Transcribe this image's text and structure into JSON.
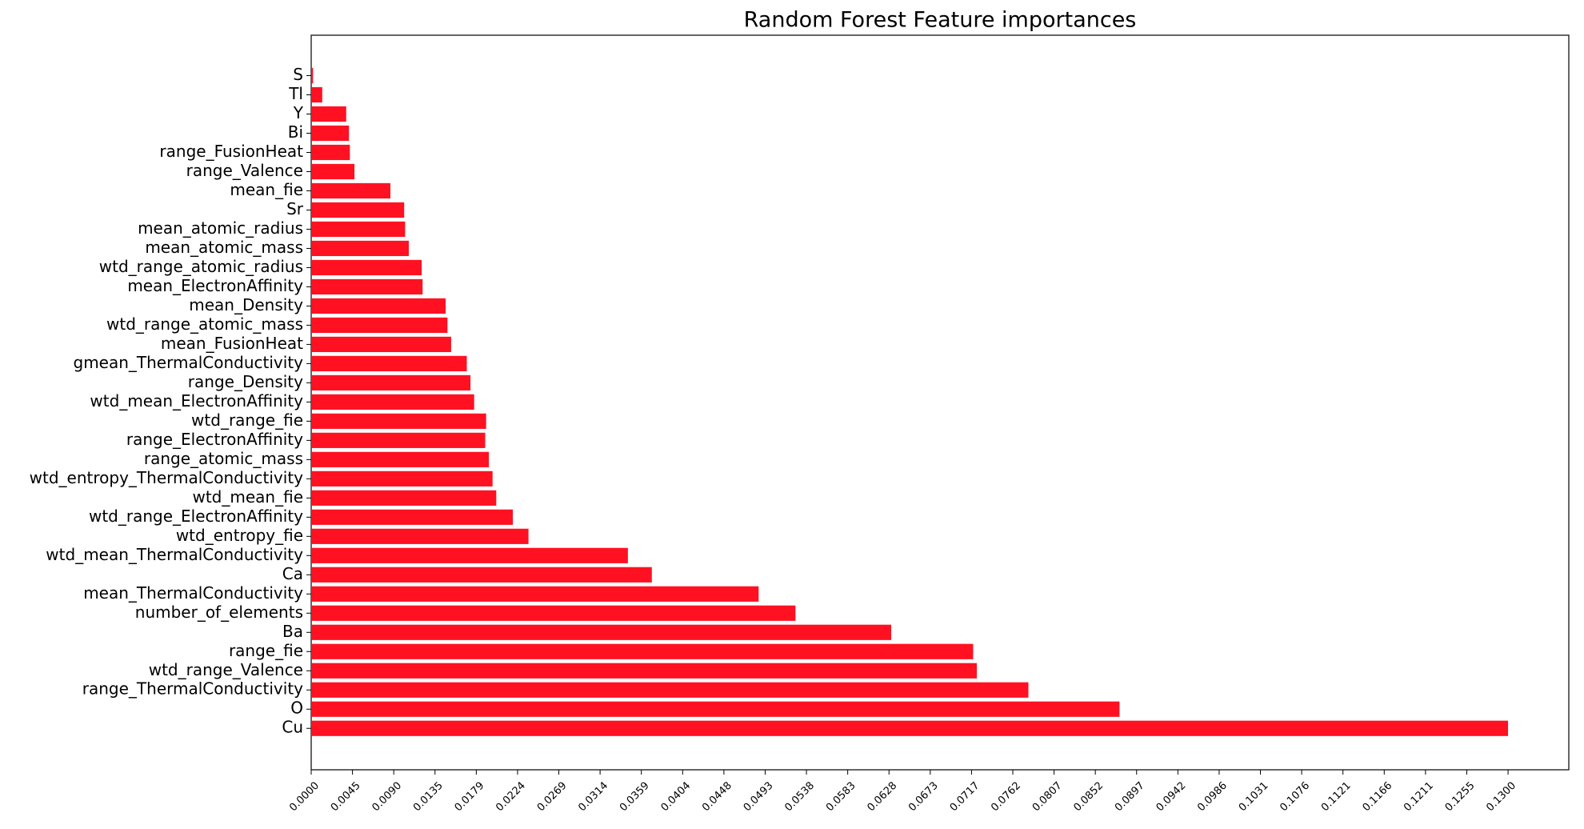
{
  "chart_data": {
    "type": "barh",
    "title": "Random Forest Feature importances",
    "categories": [
      "S",
      "Tl",
      "Y",
      "Bi",
      "range_FusionHeat",
      "range_Valence",
      "mean_fie",
      "Sr",
      "mean_atomic_radius",
      "mean_atomic_mass",
      "wtd_range_atomic_radius",
      "mean_ElectronAffinity",
      "mean_Density",
      "wtd_range_atomic_mass",
      "mean_FusionHeat",
      "gmean_ThermalConductivity",
      "range_Density",
      "wtd_mean_ElectronAffinity",
      "wtd_range_fie",
      "range_ElectronAffinity",
      "range_atomic_mass",
      "wtd_entropy_ThermalConductivity",
      "wtd_mean_fie",
      "wtd_range_ElectronAffinity",
      "wtd_entropy_fie",
      "wtd_mean_ThermalConductivity",
      "Ca",
      "mean_ThermalConductivity",
      "number_of_elements",
      "Ba",
      "range_fie",
      "wtd_range_Valence",
      "range_ThermalConductivity",
      "O",
      "Cu"
    ],
    "values": [
      0.0002,
      0.0012,
      0.0038,
      0.0041,
      0.0042,
      0.0047,
      0.0086,
      0.0101,
      0.0102,
      0.0106,
      0.012,
      0.0121,
      0.0146,
      0.0148,
      0.0152,
      0.0169,
      0.0173,
      0.0177,
      0.019,
      0.0189,
      0.0193,
      0.0197,
      0.0201,
      0.0219,
      0.0236,
      0.0344,
      0.037,
      0.0486,
      0.0526,
      0.063,
      0.0719,
      0.0723,
      0.0779,
      0.0878,
      0.13
    ],
    "color": "#ff1122",
    "xlim": [
      0,
      0.1366
    ],
    "xticks": [
      {
        "value": 0,
        "label": "0.0000"
      },
      {
        "value": 0.0044828,
        "label": "0.0045"
      },
      {
        "value": 0.0089655,
        "label": "0.0090"
      },
      {
        "value": 0.0134483,
        "label": "0.0135"
      },
      {
        "value": 0.017931,
        "label": "0.0179"
      },
      {
        "value": 0.0224138,
        "label": "0.0224"
      },
      {
        "value": 0.0268966,
        "label": "0.0269"
      },
      {
        "value": 0.0313793,
        "label": "0.0314"
      },
      {
        "value": 0.0358621,
        "label": "0.0359"
      },
      {
        "value": 0.0403448,
        "label": "0.0404"
      },
      {
        "value": 0.0448276,
        "label": "0.0448"
      },
      {
        "value": 0.0493103,
        "label": "0.0493"
      },
      {
        "value": 0.0537931,
        "label": "0.0538"
      },
      {
        "value": 0.0582759,
        "label": "0.0583"
      },
      {
        "value": 0.0627586,
        "label": "0.0628"
      },
      {
        "value": 0.0672414,
        "label": "0.0673"
      },
      {
        "value": 0.0717241,
        "label": "0.0717"
      },
      {
        "value": 0.0762069,
        "label": "0.0762"
      },
      {
        "value": 0.0806897,
        "label": "0.0807"
      },
      {
        "value": 0.0851724,
        "label": "0.0852"
      },
      {
        "value": 0.0896552,
        "label": "0.0897"
      },
      {
        "value": 0.0941379,
        "label": "0.0942"
      },
      {
        "value": 0.0986207,
        "label": "0.0986"
      },
      {
        "value": 0.1031034,
        "label": "0.1031"
      },
      {
        "value": 0.1075862,
        "label": "0.1076"
      },
      {
        "value": 0.112069,
        "label": "0.1121"
      },
      {
        "value": 0.1165517,
        "label": "0.1166"
      },
      {
        "value": 0.1210345,
        "label": "0.1211"
      },
      {
        "value": 0.1255172,
        "label": "0.1255"
      },
      {
        "value": 0.13,
        "label": "0.1300"
      }
    ],
    "grid": false
  }
}
